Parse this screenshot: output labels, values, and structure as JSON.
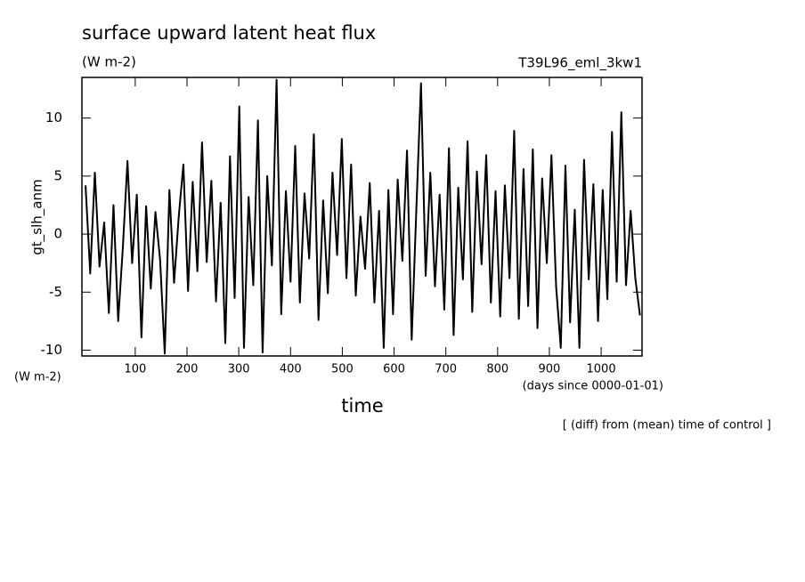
{
  "chart_data": {
    "type": "line",
    "title": "surface upward latent heat flux",
    "subtitle": "(W m-2)",
    "run_label": "T39L96_eml_3kw1",
    "y_label": "gt_slh_anm",
    "y_unit": "(W m-2)",
    "x_label": "time",
    "x_unit": "(days since 0000-01-01)",
    "note": "[ (diff) from (mean) time of control ]",
    "xlim": [
      -3,
      1079
    ],
    "ylim": [
      -10.5,
      13.5
    ],
    "xticks": [
      100,
      200,
      300,
      400,
      500,
      600,
      700,
      800,
      900,
      1000
    ],
    "yticks": [
      -10,
      -5,
      0,
      5,
      10
    ],
    "x": [
      4,
      13,
      22,
      31,
      40,
      49,
      58,
      67,
      76,
      85,
      94,
      103,
      112,
      121,
      130,
      139,
      148,
      157,
      166,
      175,
      184,
      193,
      202,
      211,
      220,
      229,
      238,
      247,
      256,
      265,
      274,
      283,
      292,
      301,
      310,
      319,
      328,
      337,
      346,
      355,
      364,
      373,
      382,
      391,
      400,
      409,
      418,
      427,
      436,
      445,
      454,
      463,
      472,
      481,
      490,
      499,
      508,
      517,
      526,
      535,
      544,
      553,
      562,
      571,
      580,
      589,
      598,
      607,
      616,
      625,
      634,
      643,
      652,
      661,
      670,
      679,
      688,
      697,
      706,
      715,
      724,
      733,
      742,
      751,
      760,
      769,
      778,
      787,
      796,
      805,
      814,
      823,
      832,
      841,
      850,
      859,
      868,
      877,
      886,
      895,
      904,
      913,
      922,
      931,
      940,
      949,
      958,
      967,
      976,
      985,
      994,
      1003,
      1012,
      1021,
      1030,
      1039,
      1048,
      1057,
      1066,
      1075
    ],
    "series": [
      {
        "color": "#000000",
        "values": [
          4.2,
          -3.4,
          5.3,
          -2.8,
          1.0,
          -6.8,
          2.5,
          -7.5,
          -1.2,
          6.3,
          -2.5,
          3.4,
          -8.9,
          2.4,
          -4.7,
          1.9,
          -2.2,
          -10.3,
          3.8,
          -4.2,
          1.5,
          6.0,
          -4.9,
          4.5,
          -3.2,
          7.9,
          -2.4,
          4.6,
          -5.8,
          2.7,
          -9.4,
          6.7,
          -5.5,
          11.0,
          -9.8,
          3.2,
          -4.4,
          9.8,
          -10.2,
          5.0,
          -2.7,
          13.3,
          -6.9,
          3.7,
          -4.1,
          7.6,
          -5.9,
          3.5,
          -2.1,
          8.6,
          -7.4,
          2.9,
          -5.1,
          5.3,
          -1.8,
          8.2,
          -3.8,
          6.0,
          -5.3,
          1.5,
          -3.0,
          4.4,
          -5.9,
          2.0,
          -9.8,
          3.8,
          -6.9,
          4.7,
          -2.3,
          7.2,
          -9.1,
          2.1,
          13.0,
          -3.6,
          5.3,
          -4.5,
          3.4,
          -6.5,
          7.4,
          -8.7,
          4.0,
          -3.9,
          8.0,
          -6.7,
          5.4,
          -2.6,
          6.8,
          -5.9,
          3.7,
          -7.1,
          4.2,
          -3.8,
          8.9,
          -7.3,
          5.6,
          -6.2,
          7.3,
          -8.1,
          4.8,
          -2.5,
          6.8,
          -4.5,
          -9.8,
          5.9,
          -7.6,
          2.1,
          -9.8,
          6.4,
          -3.9,
          4.3,
          -7.5,
          3.8,
          -5.6,
          8.8,
          -4.1,
          10.5,
          -4.4,
          2.0,
          -3.8,
          -7.0
        ]
      }
    ]
  }
}
